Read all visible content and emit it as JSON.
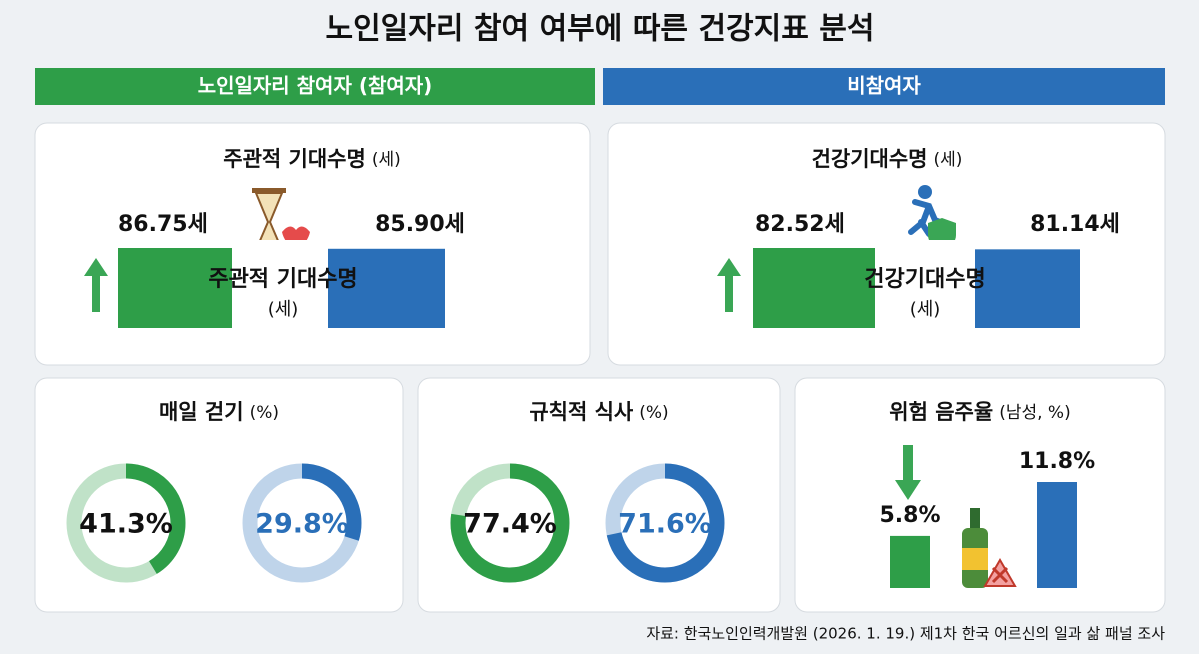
{
  "header": {
    "title": "노인일자리 참여 여부에 따른 건강지표 분석",
    "groups": [
      {
        "name": "노인일자리 참여자 (참여자)",
        "color": "#2e9e48"
      },
      {
        "name": "비참여자",
        "color": "#2a6fb8"
      }
    ]
  },
  "chart_data": [
    {
      "type": "bar",
      "title": "주관적 기대수명",
      "unit": "(세)",
      "values": [
        86.75,
        85.9
      ],
      "value_labels": [
        "86.75세",
        "85.90세"
      ]
    },
    {
      "type": "bar",
      "title": "건강기대수명",
      "unit": "(세)",
      "values": [
        82.52,
        81.14
      ],
      "value_labels": [
        "82.52세",
        "81.14세"
      ]
    },
    {
      "type": "donut",
      "title": "매일 걷기",
      "unit": "(%)",
      "values": [
        41.3,
        29.8
      ],
      "value_labels": [
        "41.3%",
        "29.8%"
      ]
    },
    {
      "type": "donut",
      "title": "규칙적 식사",
      "unit": "(%)",
      "values": [
        77.4,
        71.6
      ],
      "value_labels": [
        "77.4%",
        "71.6%"
      ]
    },
    {
      "type": "bar",
      "title": "위험 음주율",
      "unit": "(남성, %)",
      "values": [
        5.8,
        11.8
      ],
      "value_labels": [
        "5.8%",
        "11.8%"
      ]
    }
  ],
  "source": "자료: 한국노인인력개발원 (2026. 1. 19.) 제1차 한국 어르신의 일과 삶 패널 조사"
}
